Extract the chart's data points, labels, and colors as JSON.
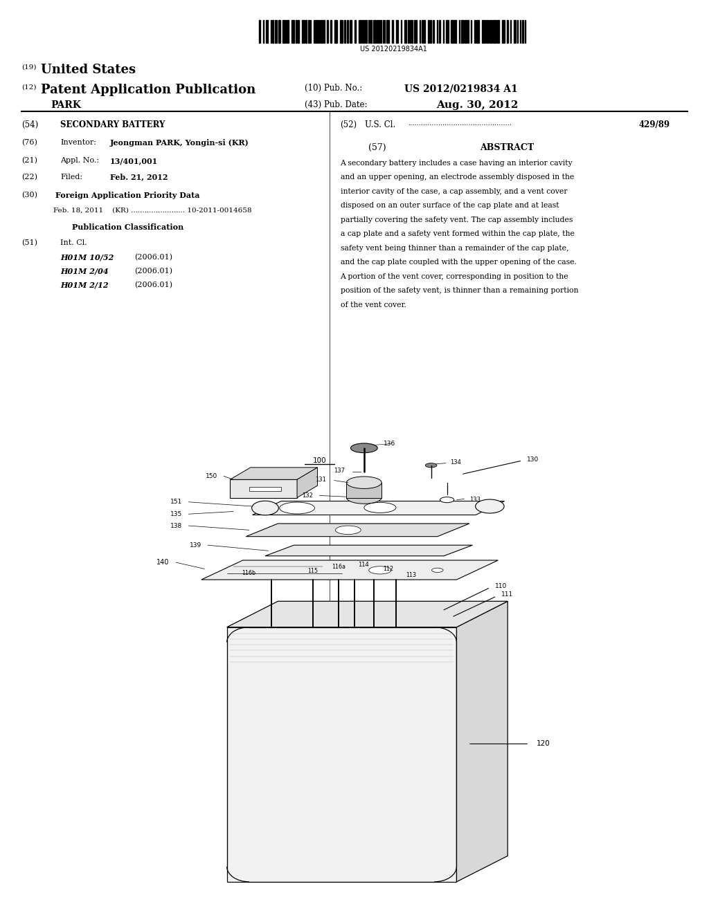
{
  "background_color": "#ffffff",
  "barcode_number": "US 20120219834A1",
  "header": {
    "country_label": "(19)",
    "country": "United States",
    "type_label": "(12)",
    "type": "Patent Application Publication",
    "inventor_name": "PARK",
    "pub_no_label": "(10) Pub. No.:",
    "pub_no": "US 2012/0219834 A1",
    "pub_date_label": "(43) Pub. Date:",
    "pub_date": "Aug. 30, 2012"
  },
  "abstract_lines": [
    "A secondary battery includes a case having an interior cavity",
    "and an upper opening, an electrode assembly disposed in the",
    "interior cavity of the case, a cap assembly, and a vent cover",
    "disposed on an outer surface of the cap plate and at least",
    "partially covering the safety vent. The cap assembly includes",
    "a cap plate and a safety vent formed within the cap plate, the",
    "safety vent being thinner than a remainder of the cap plate,",
    "and the cap plate coupled with the upper opening of the case.",
    "A portion of the vent cover, corresponding in position to the",
    "position of the safety vent, is thinner than a remaining portion",
    "of the vent cover."
  ]
}
